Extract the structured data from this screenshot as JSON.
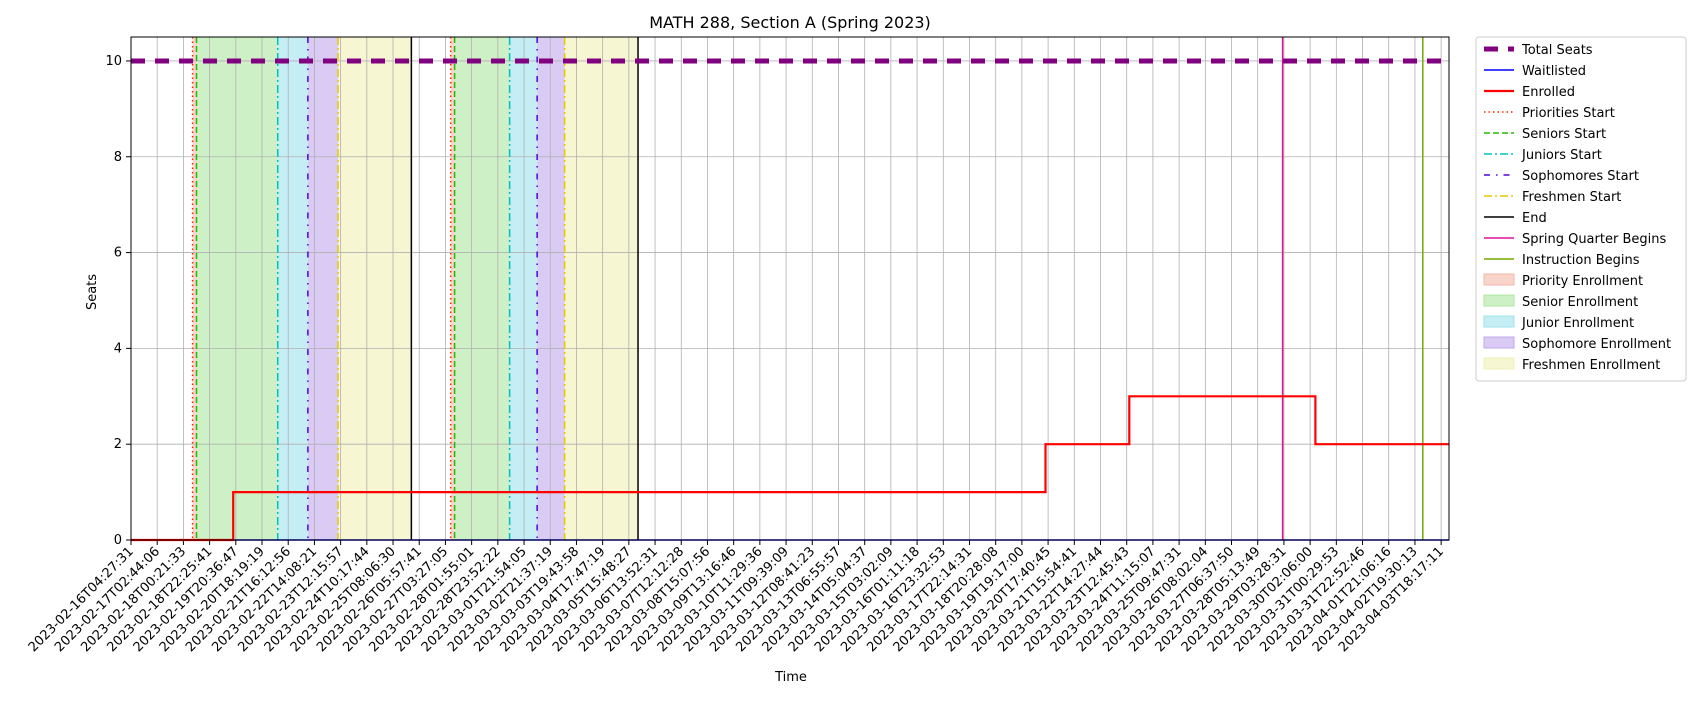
{
  "chart_data": {
    "type": "line",
    "title": "MATH 288, Section A (Spring 2023)",
    "xlabel": "Time",
    "ylabel": "Seats",
    "ylim": [
      0,
      10.5
    ],
    "y_ticks": [
      0,
      2,
      4,
      6,
      8,
      10
    ],
    "grid": true,
    "legend_position": "outside-right",
    "x_tick_labels": [
      "2023-02-16T04:27:31",
      "2023-02-17T02:44:06",
      "2023-02-18T00:21:33",
      "2023-02-18T22:25:41",
      "2023-02-19T20:36:47",
      "2023-02-20T18:19:19",
      "2023-02-21T16:12:56",
      "2023-02-22T14:08:21",
      "2023-02-23T12:15:57",
      "2023-02-24T10:17:44",
      "2023-02-25T08:06:30",
      "2023-02-26T05:57:41",
      "2023-02-27T03:27:05",
      "2023-02-28T01:55:01",
      "2023-02-28T23:52:22",
      "2023-03-01T21:54:05",
      "2023-03-02T21:37:19",
      "2023-03-03T19:43:58",
      "2023-03-04T17:47:19",
      "2023-03-05T15:48:27",
      "2023-03-06T13:52:31",
      "2023-03-07T12:12:28",
      "2023-03-08T15:07:56",
      "2023-03-09T13:16:46",
      "2023-03-10T11:29:36",
      "2023-03-11T09:39:09",
      "2023-03-12T08:41:23",
      "2023-03-13T06:55:57",
      "2023-03-14T05:04:37",
      "2023-03-15T03:02:09",
      "2023-03-16T01:11:18",
      "2023-03-16T23:32:53",
      "2023-03-17T22:14:31",
      "2023-03-18T20:28:08",
      "2023-03-19T19:17:00",
      "2023-03-20T17:40:45",
      "2023-03-21T15:54:41",
      "2023-03-22T14:27:44",
      "2023-03-23T12:45:43",
      "2023-03-24T11:15:07",
      "2023-03-25T09:47:31",
      "2023-03-26T08:02:04",
      "2023-03-27T06:37:50",
      "2023-03-28T05:13:49",
      "2023-03-29T03:28:31",
      "2023-03-30T02:06:00",
      "2023-03-31T00:29:53",
      "2023-03-31T22:52:46",
      "2023-04-01T21:06:16",
      "2023-04-02T19:30:13",
      "2023-04-03T18:17:11"
    ],
    "x_range_index": [
      0,
      50.3
    ],
    "series": [
      {
        "name": "Total Seats",
        "style": "dashed-thick",
        "color": "#800080",
        "x_index": [
          0,
          50.3
        ],
        "values": [
          10,
          10
        ]
      },
      {
        "name": "Waitlisted",
        "style": "solid",
        "color": "#0000ff",
        "x_index": [
          0,
          50.3
        ],
        "values": [
          0,
          0
        ]
      },
      {
        "name": "Enrolled",
        "style": "step",
        "color": "#ff0000",
        "x_index": [
          0,
          3.9,
          3.9,
          34.9,
          34.9,
          38.1,
          38.1,
          45.2,
          45.2,
          50.3
        ],
        "values": [
          0,
          0,
          1,
          1,
          2,
          2,
          3,
          3,
          2,
          2
        ]
      }
    ],
    "vertical_lines": [
      {
        "name": "Priorities Start",
        "color": "#ff2200",
        "style": "dotted",
        "x_index": [
          2.35,
          12.2
        ]
      },
      {
        "name": "Seniors Start",
        "color": "#22bb00",
        "style": "dashed",
        "x_index": [
          2.5,
          12.35
        ]
      },
      {
        "name": "Juniors Start",
        "color": "#00c0c8",
        "style": "dashdot",
        "x_index": [
          5.6,
          14.45
        ]
      },
      {
        "name": "Sophomores Start",
        "color": "#5500dd",
        "style": "dashdot-sparse",
        "x_index": [
          6.75,
          15.5
        ]
      },
      {
        "name": "Freshmen Start",
        "color": "#e8c800",
        "style": "dashdot",
        "x_index": [
          7.9,
          16.55
        ]
      },
      {
        "name": "End",
        "color": "#000000",
        "style": "solid",
        "x_index": [
          10.7,
          19.35
        ]
      },
      {
        "name": "Spring Quarter Begins",
        "color": "#e0109a",
        "style": "solid",
        "x_index": [
          43.95
        ]
      },
      {
        "name": "Instruction Begins",
        "color": "#77aa00",
        "style": "solid",
        "x_index": [
          49.3
        ]
      }
    ],
    "shaded_regions": [
      {
        "name": "Priority Enrollment",
        "color": "#f4b8a8",
        "ranges": [
          [
            2.35,
            2.5
          ],
          [
            12.2,
            12.35
          ]
        ]
      },
      {
        "name": "Senior Enrollment",
        "color": "#aee6a0",
        "ranges": [
          [
            2.5,
            5.6
          ],
          [
            12.35,
            14.45
          ]
        ]
      },
      {
        "name": "Junior Enrollment",
        "color": "#9fe3ec",
        "ranges": [
          [
            5.6,
            6.75
          ],
          [
            14.45,
            15.5
          ]
        ]
      },
      {
        "name": "Sophomore Enrollment",
        "color": "#c0a8ec",
        "ranges": [
          [
            6.75,
            7.9
          ],
          [
            15.5,
            16.55
          ]
        ]
      },
      {
        "name": "Freshmen Enrollment",
        "color": "#f0f0b4",
        "ranges": [
          [
            7.9,
            10.7
          ],
          [
            16.55,
            19.35
          ]
        ]
      }
    ],
    "legend": [
      {
        "label": "Total Seats",
        "kind": "line",
        "color": "#800080",
        "style": "dashed-thick"
      },
      {
        "label": "Waitlisted",
        "kind": "line",
        "color": "#0000ff",
        "style": "solid"
      },
      {
        "label": "Enrolled",
        "kind": "line",
        "color": "#ff0000",
        "style": "solid-thick"
      },
      {
        "label": "Priorities Start",
        "kind": "line",
        "color": "#ff2200",
        "style": "dotted"
      },
      {
        "label": "Seniors Start",
        "kind": "line",
        "color": "#22bb00",
        "style": "dashed"
      },
      {
        "label": "Juniors Start",
        "kind": "line",
        "color": "#00c0c8",
        "style": "dashdot"
      },
      {
        "label": "Sophomores Start",
        "kind": "line",
        "color": "#5500dd",
        "style": "dashdot-sparse"
      },
      {
        "label": "Freshmen Start",
        "kind": "line",
        "color": "#e8c800",
        "style": "dashdot"
      },
      {
        "label": "End",
        "kind": "line",
        "color": "#000000",
        "style": "solid"
      },
      {
        "label": "Spring Quarter Begins",
        "kind": "line",
        "color": "#e0109a",
        "style": "solid"
      },
      {
        "label": "Instruction Begins",
        "kind": "line",
        "color": "#77aa00",
        "style": "solid"
      },
      {
        "label": "Priority Enrollment",
        "kind": "patch",
        "color": "#f4b8a8"
      },
      {
        "label": "Senior Enrollment",
        "kind": "patch",
        "color": "#aee6a0"
      },
      {
        "label": "Junior Enrollment",
        "kind": "patch",
        "color": "#9fe3ec"
      },
      {
        "label": "Sophomore Enrollment",
        "kind": "patch",
        "color": "#c0a8ec"
      },
      {
        "label": "Freshmen Enrollment",
        "kind": "patch",
        "color": "#f0f0b4"
      }
    ]
  }
}
